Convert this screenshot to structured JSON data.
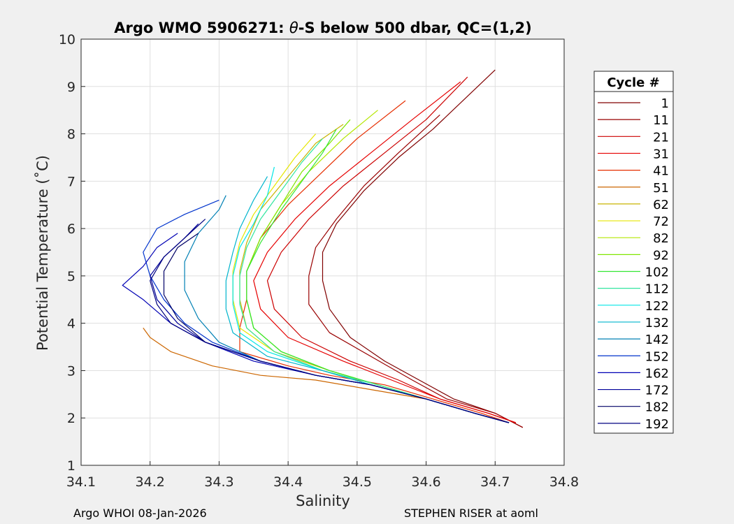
{
  "figure": {
    "background": "#f0f0f0",
    "footer_left": "Argo WHOI 08-Jan-2026",
    "footer_right": "STEPHEN RISER at aoml"
  },
  "chart_data": {
    "type": "line",
    "title_prefix": "Argo WMO 5906271: ",
    "title_theta": "θ",
    "title_suffix": "-S below 500 dbar,  QC=(1,2)",
    "xlabel": "Salinity",
    "ylabel": "Potential Temperature (˚C)",
    "xlim": [
      34.1,
      34.8
    ],
    "ylim": [
      1,
      10
    ],
    "xticks": [
      "34.1",
      "34.2",
      "34.3",
      "34.4",
      "34.5",
      "34.6",
      "34.7",
      "34.8"
    ],
    "yticks": [
      "1",
      "2",
      "3",
      "4",
      "5",
      "6",
      "7",
      "8",
      "9",
      "10"
    ],
    "grid": true,
    "legend_title": "Cycle #",
    "legend_position": "right-outside",
    "series": [
      {
        "name": "1",
        "color": "#800000",
        "values": [
          [
            34.74,
            1.8
          ],
          [
            34.7,
            2.1
          ],
          [
            34.64,
            2.4
          ],
          [
            34.59,
            2.8
          ],
          [
            34.54,
            3.2
          ],
          [
            34.49,
            3.7
          ],
          [
            34.46,
            4.3
          ],
          [
            34.45,
            4.9
          ],
          [
            34.45,
            5.5
          ],
          [
            34.47,
            6.1
          ],
          [
            34.51,
            6.8
          ],
          [
            34.56,
            7.5
          ],
          [
            34.61,
            8.1
          ],
          [
            34.7,
            9.35
          ]
        ]
      },
      {
        "name": "11",
        "color": "#990000",
        "values": [
          [
            34.74,
            1.8
          ],
          [
            34.7,
            2.1
          ],
          [
            34.63,
            2.4
          ],
          [
            34.58,
            2.8
          ],
          [
            34.52,
            3.3
          ],
          [
            34.46,
            3.8
          ],
          [
            34.43,
            4.4
          ],
          [
            34.43,
            5.0
          ],
          [
            34.44,
            5.6
          ],
          [
            34.47,
            6.2
          ],
          [
            34.51,
            6.9
          ],
          [
            34.56,
            7.6
          ],
          [
            34.62,
            8.4
          ]
        ]
      },
      {
        "name": "21",
        "color": "#cc0000",
        "values": [
          [
            34.73,
            1.9
          ],
          [
            34.69,
            2.1
          ],
          [
            34.62,
            2.4
          ],
          [
            34.56,
            2.8
          ],
          [
            34.49,
            3.2
          ],
          [
            34.42,
            3.7
          ],
          [
            34.38,
            4.3
          ],
          [
            34.37,
            4.9
          ],
          [
            34.39,
            5.5
          ],
          [
            34.43,
            6.2
          ],
          [
            34.48,
            6.9
          ],
          [
            34.54,
            7.6
          ],
          [
            34.6,
            8.3
          ],
          [
            34.66,
            9.2
          ]
        ]
      },
      {
        "name": "31",
        "color": "#e60000",
        "values": [
          [
            34.73,
            1.9
          ],
          [
            34.69,
            2.1
          ],
          [
            34.62,
            2.4
          ],
          [
            34.55,
            2.8
          ],
          [
            34.48,
            3.2
          ],
          [
            34.4,
            3.7
          ],
          [
            34.36,
            4.3
          ],
          [
            34.35,
            4.9
          ],
          [
            34.37,
            5.5
          ],
          [
            34.41,
            6.2
          ],
          [
            34.46,
            6.9
          ],
          [
            34.52,
            7.6
          ],
          [
            34.58,
            8.3
          ],
          [
            34.65,
            9.1
          ]
        ]
      },
      {
        "name": "41",
        "color": "#e62e00",
        "values": [
          [
            34.72,
            1.9
          ],
          [
            34.68,
            2.1
          ],
          [
            34.61,
            2.4
          ],
          [
            34.54,
            2.7
          ],
          [
            34.46,
            2.9
          ],
          [
            34.4,
            3.1
          ],
          [
            34.33,
            3.4
          ],
          [
            34.33,
            3.9
          ],
          [
            34.34,
            4.5
          ],
          [
            34.34,
            5.1
          ],
          [
            34.36,
            5.8
          ],
          [
            34.4,
            6.5
          ],
          [
            34.45,
            7.2
          ],
          [
            34.5,
            7.9
          ],
          [
            34.57,
            8.7
          ]
        ]
      },
      {
        "name": "51",
        "color": "#cc6600",
        "values": [
          [
            34.72,
            1.9
          ],
          [
            34.67,
            2.1
          ],
          [
            34.6,
            2.4
          ],
          [
            34.52,
            2.6
          ],
          [
            34.44,
            2.8
          ],
          [
            34.36,
            2.9
          ],
          [
            34.29,
            3.1
          ],
          [
            34.23,
            3.4
          ],
          [
            34.2,
            3.7
          ],
          [
            34.19,
            3.9
          ]
        ]
      },
      {
        "name": "62",
        "color": "#c8b400",
        "values": [
          [
            34.72,
            1.9
          ],
          [
            34.67,
            2.1
          ],
          [
            34.6,
            2.4
          ],
          [
            34.53,
            2.7
          ],
          [
            34.46,
            3.0
          ],
          [
            34.38,
            3.4
          ],
          [
            34.34,
            3.9
          ],
          [
            34.33,
            4.5
          ],
          [
            34.33,
            5.1
          ],
          [
            34.34,
            5.7
          ],
          [
            34.36,
            6.4
          ],
          [
            34.4,
            7.1
          ],
          [
            34.44,
            7.8
          ],
          [
            34.48,
            8.2
          ]
        ]
      },
      {
        "name": "72",
        "color": "#e6e600",
        "values": [
          [
            34.72,
            1.9
          ],
          [
            34.67,
            2.1
          ],
          [
            34.6,
            2.4
          ],
          [
            34.53,
            2.7
          ],
          [
            34.45,
            3.0
          ],
          [
            34.38,
            3.4
          ],
          [
            34.33,
            3.9
          ],
          [
            34.32,
            4.5
          ],
          [
            34.32,
            5.1
          ],
          [
            34.33,
            5.7
          ],
          [
            34.35,
            6.3
          ],
          [
            34.38,
            6.9
          ],
          [
            34.41,
            7.5
          ],
          [
            34.44,
            8.0
          ]
        ]
      },
      {
        "name": "82",
        "color": "#b4e600",
        "values": [
          [
            34.72,
            1.9
          ],
          [
            34.67,
            2.1
          ],
          [
            34.6,
            2.4
          ],
          [
            34.53,
            2.7
          ],
          [
            34.46,
            3.0
          ],
          [
            34.39,
            3.4
          ],
          [
            34.35,
            3.9
          ],
          [
            34.34,
            4.5
          ],
          [
            34.34,
            5.1
          ],
          [
            34.36,
            5.8
          ],
          [
            34.39,
            6.5
          ],
          [
            34.43,
            7.2
          ],
          [
            34.48,
            7.9
          ],
          [
            34.53,
            8.5
          ]
        ]
      },
      {
        "name": "92",
        "color": "#80e600",
        "values": [
          [
            34.72,
            1.9
          ],
          [
            34.67,
            2.1
          ],
          [
            34.6,
            2.4
          ],
          [
            34.53,
            2.7
          ],
          [
            34.46,
            3.0
          ],
          [
            34.39,
            3.4
          ],
          [
            34.35,
            3.9
          ],
          [
            34.34,
            4.5
          ],
          [
            34.34,
            5.1
          ],
          [
            34.36,
            5.8
          ],
          [
            34.39,
            6.5
          ],
          [
            34.42,
            7.2
          ],
          [
            34.46,
            7.8
          ],
          [
            34.49,
            8.3
          ]
        ]
      },
      {
        "name": "102",
        "color": "#33e633",
        "values": [
          [
            34.72,
            1.9
          ],
          [
            34.67,
            2.1
          ],
          [
            34.6,
            2.4
          ],
          [
            34.53,
            2.7
          ],
          [
            34.46,
            3.0
          ],
          [
            34.39,
            3.4
          ],
          [
            34.35,
            3.9
          ],
          [
            34.34,
            4.5
          ],
          [
            34.34,
            5.1
          ],
          [
            34.36,
            5.7
          ],
          [
            34.39,
            6.4
          ],
          [
            34.42,
            7.0
          ],
          [
            34.45,
            7.6
          ],
          [
            34.47,
            8.1
          ]
        ]
      },
      {
        "name": "112",
        "color": "#33e6a0",
        "values": [
          [
            34.72,
            1.9
          ],
          [
            34.67,
            2.1
          ],
          [
            34.6,
            2.4
          ],
          [
            34.53,
            2.7
          ],
          [
            34.45,
            3.0
          ],
          [
            34.38,
            3.4
          ],
          [
            34.34,
            3.9
          ],
          [
            34.33,
            4.4
          ],
          [
            34.33,
            5.0
          ],
          [
            34.34,
            5.6
          ],
          [
            34.36,
            6.2
          ],
          [
            34.39,
            6.8
          ],
          [
            34.42,
            7.4
          ],
          [
            34.45,
            7.9
          ]
        ]
      },
      {
        "name": "122",
        "color": "#00e6e6",
        "values": [
          [
            34.72,
            1.9
          ],
          [
            34.67,
            2.1
          ],
          [
            34.6,
            2.4
          ],
          [
            34.52,
            2.7
          ],
          [
            34.45,
            3.0
          ],
          [
            34.37,
            3.4
          ],
          [
            34.33,
            3.8
          ],
          [
            34.32,
            4.4
          ],
          [
            34.32,
            5.0
          ],
          [
            34.33,
            5.6
          ],
          [
            34.35,
            6.1
          ],
          [
            34.37,
            6.7
          ],
          [
            34.38,
            7.3
          ]
        ]
      },
      {
        "name": "132",
        "color": "#00b4cc",
        "values": [
          [
            34.72,
            1.9
          ],
          [
            34.67,
            2.1
          ],
          [
            34.6,
            2.4
          ],
          [
            34.52,
            2.7
          ],
          [
            34.45,
            3.0
          ],
          [
            34.37,
            3.3
          ],
          [
            34.32,
            3.8
          ],
          [
            34.31,
            4.3
          ],
          [
            34.31,
            4.9
          ],
          [
            34.32,
            5.5
          ],
          [
            34.33,
            6.0
          ],
          [
            34.35,
            6.6
          ],
          [
            34.37,
            7.1
          ]
        ]
      },
      {
        "name": "142",
        "color": "#0080b4",
        "values": [
          [
            34.72,
            1.9
          ],
          [
            34.67,
            2.1
          ],
          [
            34.6,
            2.4
          ],
          [
            34.52,
            2.7
          ],
          [
            34.44,
            2.9
          ],
          [
            34.36,
            3.2
          ],
          [
            34.3,
            3.6
          ],
          [
            34.27,
            4.1
          ],
          [
            34.25,
            4.7
          ],
          [
            34.25,
            5.3
          ],
          [
            34.27,
            5.9
          ],
          [
            34.3,
            6.4
          ],
          [
            34.31,
            6.7
          ]
        ]
      },
      {
        "name": "152",
        "color": "#0033cc",
        "values": [
          [
            34.72,
            1.9
          ],
          [
            34.67,
            2.1
          ],
          [
            34.6,
            2.4
          ],
          [
            34.52,
            2.7
          ],
          [
            34.44,
            2.9
          ],
          [
            34.36,
            3.2
          ],
          [
            34.29,
            3.6
          ],
          [
            34.25,
            4.0
          ],
          [
            34.22,
            4.5
          ],
          [
            34.2,
            5.0
          ],
          [
            34.19,
            5.5
          ],
          [
            34.21,
            6.0
          ],
          [
            34.25,
            6.3
          ],
          [
            34.3,
            6.6
          ]
        ]
      },
      {
        "name": "162",
        "color": "#0000b4",
        "values": [
          [
            34.72,
            1.9
          ],
          [
            34.67,
            2.1
          ],
          [
            34.6,
            2.4
          ],
          [
            34.52,
            2.7
          ],
          [
            34.44,
            2.9
          ],
          [
            34.35,
            3.2
          ],
          [
            34.28,
            3.6
          ],
          [
            34.23,
            4.0
          ],
          [
            34.19,
            4.5
          ],
          [
            34.16,
            4.8
          ],
          [
            34.19,
            5.2
          ],
          [
            34.21,
            5.6
          ],
          [
            34.24,
            5.9
          ]
        ]
      },
      {
        "name": "172",
        "color": "#000099",
        "values": [
          [
            34.72,
            1.9
          ],
          [
            34.67,
            2.1
          ],
          [
            34.6,
            2.4
          ],
          [
            34.52,
            2.7
          ],
          [
            34.44,
            2.9
          ],
          [
            34.36,
            3.2
          ],
          [
            34.28,
            3.6
          ],
          [
            34.24,
            4.0
          ],
          [
            34.21,
            4.5
          ],
          [
            34.2,
            5.0
          ],
          [
            34.22,
            5.4
          ],
          [
            34.25,
            5.8
          ],
          [
            34.27,
            6.1
          ]
        ]
      },
      {
        "name": "182",
        "color": "#000066",
        "values": [
          [
            34.72,
            1.9
          ],
          [
            34.67,
            2.1
          ],
          [
            34.6,
            2.4
          ],
          [
            34.52,
            2.7
          ],
          [
            34.44,
            2.9
          ],
          [
            34.36,
            3.2
          ],
          [
            34.28,
            3.6
          ],
          [
            34.24,
            4.1
          ],
          [
            34.22,
            4.6
          ],
          [
            34.22,
            5.1
          ],
          [
            34.24,
            5.6
          ],
          [
            34.27,
            5.9
          ]
        ]
      },
      {
        "name": "192",
        "color": "#000080",
        "values": [
          [
            34.72,
            1.9
          ],
          [
            34.67,
            2.1
          ],
          [
            34.6,
            2.4
          ],
          [
            34.52,
            2.7
          ],
          [
            34.44,
            2.9
          ],
          [
            34.36,
            3.2
          ],
          [
            34.28,
            3.6
          ],
          [
            34.23,
            4.0
          ],
          [
            34.21,
            4.4
          ],
          [
            34.2,
            4.9
          ],
          [
            34.22,
            5.4
          ],
          [
            34.25,
            5.8
          ],
          [
            34.28,
            6.2
          ]
        ]
      }
    ]
  }
}
